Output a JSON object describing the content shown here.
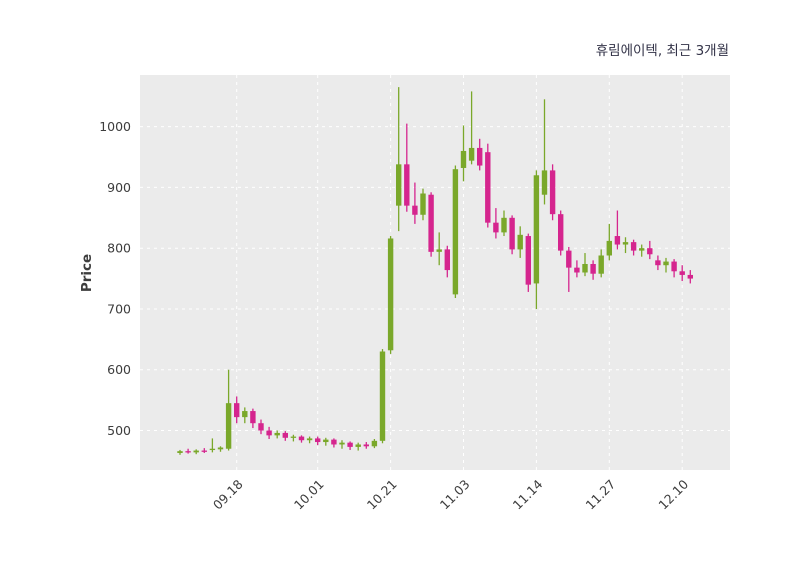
{
  "chart_data": {
    "type": "candlestick",
    "title": "휴림에이텍, 최근 3개월",
    "ylabel": "Price",
    "xlabel": "",
    "ylim": [
      435,
      1085
    ],
    "yticks": [
      500,
      600,
      700,
      800,
      900,
      1000
    ],
    "xticks": [
      {
        "label": "09.18",
        "index": 7
      },
      {
        "label": "10.01",
        "index": 17
      },
      {
        "label": "10.21",
        "index": 26
      },
      {
        "label": "11.03",
        "index": 35
      },
      {
        "label": "11.14",
        "index": 44
      },
      {
        "label": "11.27",
        "index": 53
      },
      {
        "label": "12.10",
        "index": 62
      }
    ],
    "grid": true,
    "legend": "none",
    "colors": {
      "up": "#7aa82a",
      "down": "#d5258e",
      "plot_bg": "#ebebeb",
      "grid": "#ffffff",
      "tick_text": "#3d3d3d",
      "title_text": "#333348"
    },
    "candles": [
      [
        463,
        468,
        460,
        466
      ],
      [
        466,
        470,
        462,
        464
      ],
      [
        464,
        469,
        461,
        467
      ],
      [
        467,
        471,
        463,
        465
      ],
      [
        468,
        487,
        464,
        470
      ],
      [
        469,
        474,
        465,
        472
      ],
      [
        470,
        600,
        467,
        545
      ],
      [
        545,
        556,
        512,
        522
      ],
      [
        522,
        538,
        512,
        532
      ],
      [
        532,
        536,
        504,
        512
      ],
      [
        512,
        518,
        494,
        500
      ],
      [
        500,
        506,
        486,
        492
      ],
      [
        492,
        500,
        487,
        496
      ],
      [
        496,
        499,
        483,
        488
      ],
      [
        488,
        493,
        482,
        490
      ],
      [
        490,
        492,
        480,
        484
      ],
      [
        484,
        490,
        479,
        487
      ],
      [
        487,
        490,
        476,
        481
      ],
      [
        481,
        488,
        475,
        485
      ],
      [
        485,
        487,
        472,
        477
      ],
      [
        477,
        484,
        470,
        480
      ],
      [
        480,
        482,
        468,
        473
      ],
      [
        473,
        480,
        467,
        477
      ],
      [
        477,
        481,
        470,
        474
      ],
      [
        474,
        486,
        471,
        483
      ],
      [
        483,
        634,
        479,
        630
      ],
      [
        632,
        820,
        626,
        816
      ],
      [
        870,
        1065,
        828,
        938
      ],
      [
        938,
        1005,
        860,
        870
      ],
      [
        870,
        908,
        840,
        855
      ],
      [
        855,
        898,
        846,
        890
      ],
      [
        888,
        892,
        786,
        794
      ],
      [
        794,
        826,
        772,
        798
      ],
      [
        798,
        804,
        752,
        764
      ],
      [
        724,
        936,
        718,
        930
      ],
      [
        932,
        1002,
        910,
        960
      ],
      [
        944,
        1058,
        938,
        965
      ],
      [
        965,
        980,
        928,
        936
      ],
      [
        958,
        972,
        834,
        842
      ],
      [
        842,
        866,
        816,
        826
      ],
      [
        826,
        862,
        820,
        850
      ],
      [
        850,
        854,
        790,
        798
      ],
      [
        798,
        836,
        784,
        822
      ],
      [
        820,
        824,
        728,
        740
      ],
      [
        742,
        928,
        700,
        920
      ],
      [
        888,
        1045,
        872,
        928
      ],
      [
        928,
        938,
        846,
        856
      ],
      [
        856,
        862,
        788,
        796
      ],
      [
        796,
        802,
        728,
        768
      ],
      [
        768,
        780,
        752,
        760
      ],
      [
        760,
        792,
        754,
        774
      ],
      [
        774,
        780,
        748,
        758
      ],
      [
        758,
        798,
        752,
        788
      ],
      [
        788,
        840,
        780,
        812
      ],
      [
        820,
        862,
        798,
        806
      ],
      [
        806,
        818,
        792,
        810
      ],
      [
        810,
        814,
        788,
        796
      ],
      [
        796,
        806,
        786,
        800
      ],
      [
        800,
        812,
        782,
        790
      ],
      [
        780,
        788,
        764,
        772
      ],
      [
        772,
        784,
        760,
        778
      ],
      [
        778,
        782,
        752,
        762
      ],
      [
        762,
        772,
        746,
        756
      ],
      [
        756,
        764,
        742,
        750
      ]
    ]
  }
}
